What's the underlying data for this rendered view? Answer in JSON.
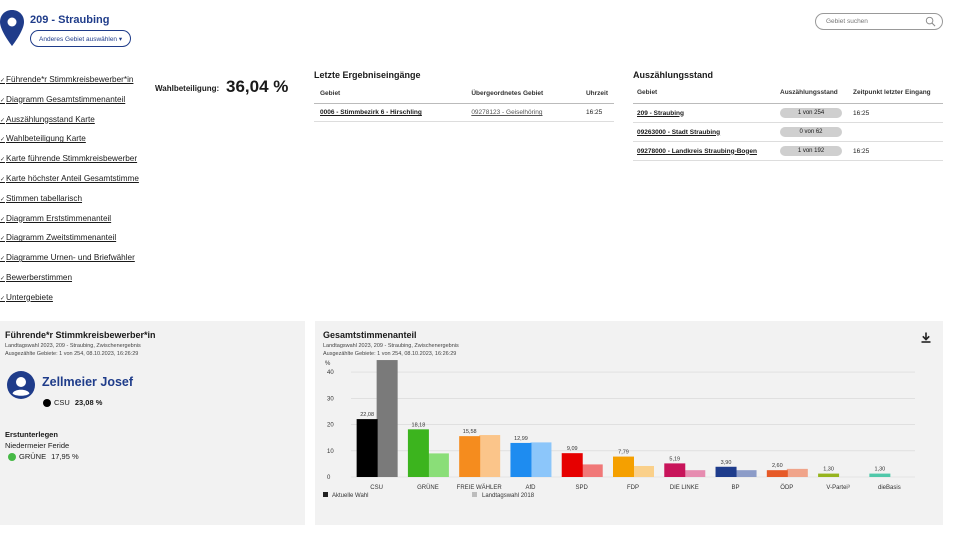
{
  "header": {
    "region_title": "209 - Straubing",
    "change_button": "Anderes Gebiet auswählen ▾",
    "search_placeholder": "Gebiet suchen"
  },
  "nav": {
    "items": [
      "Führende*r Stimmkreisbewerber*in",
      "Diagramm Gesamtstimmenanteil",
      "Auszählungsstand Karte",
      "Wahlbeteiligung Karte",
      "Karte führende Stimmkreisbewerber",
      "Karte höchster Anteil Gesamtstimme",
      "Stimmen tabellarisch",
      "Diagramm Erststimmenanteil",
      "Diagramm Zweitstimmenanteil",
      "Diagramme Urnen- und Briefwähler",
      "Bewerberstimmen",
      "Untergebiete"
    ]
  },
  "turnout": {
    "label": "Wahlbeteiligung:",
    "value": "36,04 %"
  },
  "results": {
    "title": "Letzte Ergebniseingänge",
    "headers": [
      "Gebiet",
      "Übergeordnetes Gebiet",
      "Uhrzeit"
    ],
    "rows": [
      {
        "area": "0006 - Stimmbezirk 6 - Hirschling",
        "parent": "09278123 - Geiselhöring",
        "time": "16:25"
      }
    ]
  },
  "count": {
    "title": "Auszählungsstand",
    "headers": [
      "Gebiet",
      "Auszählungsstand",
      "Zeitpunkt letzter Eingang"
    ],
    "rows": [
      {
        "area": "209 - Straubing",
        "status": "1 von 254",
        "time": "16:25"
      },
      {
        "area": "09263000 - Stadt Straubing",
        "status": "0 von 62",
        "time": ""
      },
      {
        "area": "09278000 - Landkreis Straubing-Bogen",
        "status": "1 von 192",
        "time": "16:25"
      }
    ]
  },
  "leader_card": {
    "title": "Führende*r Stimmkreisbewerber*in",
    "sub1": "Landtagswahl 2023, 209 - Straubing, Zwischenergebnis",
    "sub2": "Ausgezählte Gebiete: 1 von 254, 08.10.2023, 16:26:29",
    "name": "Zellmeier Josef",
    "party": "CSU",
    "party_color": "#000000",
    "percent": "23,08 %",
    "runner_heading": "Erstunterlegen",
    "runner_name": "Niedermeier Feride",
    "runner_party": "GRÜNE",
    "runner_color": "#46b946",
    "runner_percent": "17,95 %"
  },
  "chart_card": {
    "title": "Gesamtstimmenanteil",
    "sub1": "Landtagswahl 2023, 209 - Straubing, Zwischenergebnis",
    "sub2": "Ausgezählte Gebiete: 1 von 254, 08.10.2023, 16:26:29"
  },
  "chart_data": {
    "type": "bar",
    "ylabel": "%",
    "ylim": [
      0,
      45
    ],
    "yticks": [
      0,
      10,
      20,
      30,
      40
    ],
    "categories": [
      "CSU",
      "GRÜNE",
      "FREIE WÄHLER",
      "AfD",
      "SPD",
      "FDP",
      "DIE LINKE",
      "BP",
      "ÖDP",
      "V-Partei³",
      "dieBasis"
    ],
    "series": [
      {
        "name": "Aktuelle Wahl",
        "values": [
          22.08,
          18.18,
          15.58,
          12.99,
          9.09,
          7.79,
          5.19,
          3.9,
          2.6,
          1.3,
          1.3
        ],
        "labels": [
          "22,08",
          "18,18",
          "15,58",
          "12,99",
          "9,09",
          "7,79",
          "5,19",
          "3,90",
          "2,60",
          "1,30",
          "1,30"
        ],
        "colors": [
          "#000000",
          "#3cb41e",
          "#f58c1e",
          "#1e8cf0",
          "#e60000",
          "#f5a000",
          "#c8145a",
          "#1e3c8c",
          "#e65a28",
          "#96b41e",
          "#50c8aa"
        ]
      },
      {
        "name": "Landtagswahl 2018",
        "values": [
          44.6,
          9.0,
          16.0,
          13.2,
          4.8,
          4.2,
          2.6,
          2.6,
          3.1,
          0,
          0
        ],
        "colors": [
          "#7a7a7a",
          "#8ade78",
          "#fbc58a",
          "#8cc6fa",
          "#f07878",
          "#fad08a",
          "#e68cb0",
          "#8c9cc8",
          "#f0a48a",
          "#cbe08a",
          "#a8e6d6"
        ]
      }
    ],
    "legend": [
      "Aktuelle Wahl",
      "Landtagswahl 2018"
    ],
    "legend_colors": [
      "#222222",
      "#bdbdbd"
    ]
  }
}
